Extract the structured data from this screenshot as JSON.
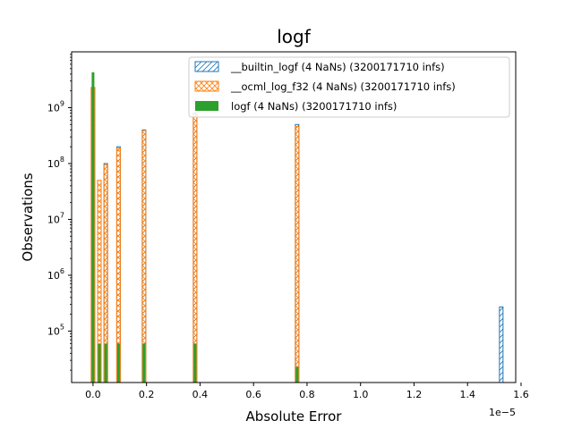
{
  "chart_data": {
    "type": "bar",
    "title": "logf",
    "xlabel": "Absolute Error",
    "ylabel": "Observations",
    "x_offset_label": "1e−5",
    "x_scale_factor": 1e-05,
    "xlim": [
      -0.08,
      1.58
    ],
    "ylim": [
      12000,
      10000000000
    ],
    "yscale": "log",
    "grid": false,
    "legend_position": "top-right",
    "x_ticks": [
      0.0,
      0.2,
      0.4,
      0.6,
      0.8,
      1.0,
      1.2,
      1.4,
      1.6
    ],
    "x_tick_labels": [
      "0.0",
      "0.2",
      "0.4",
      "0.6",
      "0.8",
      "1.0",
      "1.2",
      "1.4",
      "1.6"
    ],
    "y_ticks": [
      100000,
      1000000,
      10000000,
      100000000,
      1000000000
    ],
    "y_tick_labels": [
      {
        "base": "10",
        "exp": "5"
      },
      {
        "base": "10",
        "exp": "6"
      },
      {
        "base": "10",
        "exp": "7"
      },
      {
        "base": "10",
        "exp": "8"
      },
      {
        "base": "10",
        "exp": "9"
      }
    ],
    "series": [
      {
        "name": "__builtin_logf (4 NaNs) (3200171710 infs)",
        "style": "hatch-diagonal",
        "color": "#1f77b4",
        "bars": [
          {
            "x": 0.0,
            "value": 2300000000
          },
          {
            "x": 0.0477,
            "value": 100000000
          },
          {
            "x": 0.0954,
            "value": 200000000
          },
          {
            "x": 0.1907,
            "value": 400000000
          },
          {
            "x": 0.3815,
            "value": 800000000
          },
          {
            "x": 0.7629,
            "value": 500000000
          },
          {
            "x": 1.5259,
            "value": 270000
          }
        ]
      },
      {
        "name": "__ocml_log_f32 (4 NaNs) (3200171710 infs)",
        "style": "hatch-cross",
        "color": "#ff7f0e",
        "bars": [
          {
            "x": 0.0,
            "value": 2300000000
          },
          {
            "x": 0.0238,
            "value": 50000000
          },
          {
            "x": 0.0477,
            "value": 95000000
          },
          {
            "x": 0.0954,
            "value": 190000000
          },
          {
            "x": 0.1907,
            "value": 390000000
          },
          {
            "x": 0.3815,
            "value": 780000000
          },
          {
            "x": 0.7629,
            "value": 460000000
          }
        ]
      },
      {
        "name": "logf (4 NaNs) (3200171710 infs)",
        "style": "solid",
        "color": "#2ca02c",
        "bars": [
          {
            "x": 0.0,
            "value": 4300000000
          },
          {
            "x": 0.0238,
            "value": 60000
          },
          {
            "x": 0.0477,
            "value": 60000
          },
          {
            "x": 0.0954,
            "value": 60000
          },
          {
            "x": 0.1907,
            "value": 60000
          },
          {
            "x": 0.3815,
            "value": 60000
          },
          {
            "x": 0.7629,
            "value": 23000
          }
        ]
      }
    ]
  }
}
